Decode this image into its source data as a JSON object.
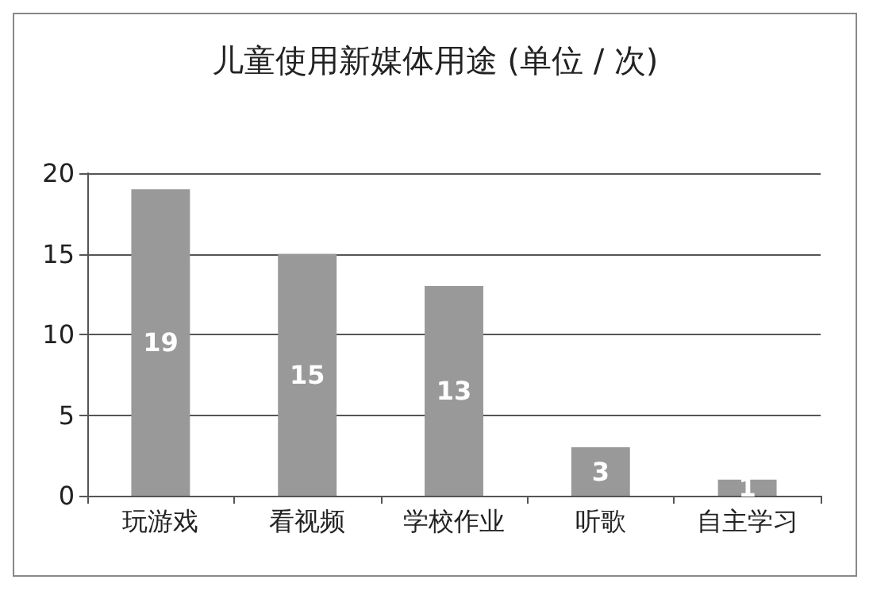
{
  "chart_data": {
    "type": "bar",
    "title": "儿童使用新媒体用途 (单位 / 次)",
    "categories": [
      "玩游戏",
      "看视频",
      "学校作业",
      "听歌",
      "自主学习"
    ],
    "values": [
      19,
      15,
      13,
      3,
      1
    ],
    "color": "#999999",
    "ylim": [
      0,
      20
    ],
    "yticks": [
      0,
      5,
      10,
      15,
      20
    ],
    "grid": "y",
    "data_labels": true
  }
}
